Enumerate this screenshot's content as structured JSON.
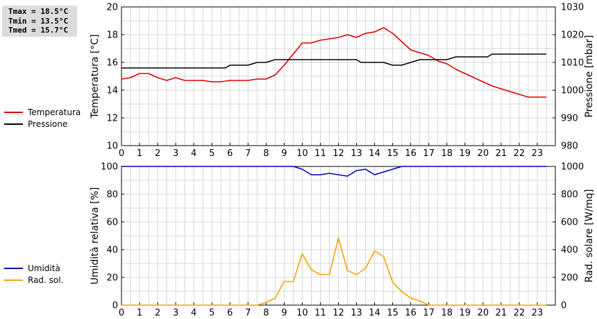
{
  "stats": {
    "tmax": "Tmax = 18.5°C",
    "tmin": "Tmin = 13.5°C",
    "tmed": "Tmed = 15.7°C"
  },
  "legend_top": [
    {
      "label": "Temperatura",
      "color": "#dd0000"
    },
    {
      "label": "Pressione",
      "color": "#000000"
    }
  ],
  "legend_bottom": [
    {
      "label": "Umidità",
      "color": "#0000bb"
    },
    {
      "label": "Rad. sol.",
      "color": "#f5a300"
    }
  ],
  "chart_data": [
    {
      "type": "line",
      "xlabel": "",
      "xlim": [
        0,
        24
      ],
      "xticks": [
        "0",
        "1",
        "2",
        "3",
        "4",
        "5",
        "6",
        "7",
        "8",
        "9",
        "10",
        "11",
        "12",
        "13",
        "14",
        "15",
        "16",
        "17",
        "18",
        "19",
        "20",
        "21",
        "22",
        "23"
      ],
      "ylabel": "Temperatura [°C]",
      "ylim": [
        10,
        20
      ],
      "yticks": [
        "10",
        "12",
        "14",
        "16",
        "18",
        "20"
      ],
      "y2label": "Pressione [mbar]",
      "y2lim": [
        980,
        1030
      ],
      "y2ticks": [
        "980",
        "990",
        "1000",
        "1010",
        "1020",
        "1030"
      ],
      "grid": true,
      "series": [
        {
          "name": "Temperatura",
          "axis": "left",
          "color": "#dd0000",
          "x": [
            0,
            0.5,
            1,
            1.5,
            2,
            2.5,
            3,
            3.5,
            4,
            4.5,
            5,
            5.5,
            6,
            6.5,
            7,
            7.5,
            8,
            8.5,
            9,
            9.5,
            10,
            10.5,
            11,
            11.5,
            12,
            12.5,
            13,
            13.5,
            14,
            14.5,
            15,
            15.5,
            16,
            16.5,
            17,
            17.5,
            18,
            18.5,
            19,
            19.5,
            20,
            20.5,
            21,
            21.5,
            22,
            22.5,
            23,
            23.5
          ],
          "y": [
            14.8,
            14.9,
            15.2,
            15.2,
            14.9,
            14.7,
            14.9,
            14.7,
            14.7,
            14.7,
            14.6,
            14.6,
            14.7,
            14.7,
            14.7,
            14.8,
            14.8,
            15.1,
            15.8,
            16.6,
            17.4,
            17.4,
            17.6,
            17.7,
            17.8,
            18.0,
            17.8,
            18.1,
            18.2,
            18.5,
            18.1,
            17.5,
            16.9,
            16.7,
            16.5,
            16.1,
            15.9,
            15.5,
            15.2,
            14.9,
            14.6,
            14.3,
            14.1,
            13.9,
            13.7,
            13.5,
            13.5,
            13.5
          ]
        },
        {
          "name": "Pressione",
          "axis": "right",
          "color": "#000000",
          "x": [
            0,
            5.75,
            6,
            6.5,
            7,
            7.25,
            7.5,
            8,
            8.25,
            8.5,
            9,
            12.75,
            13,
            13.25,
            14,
            14.5,
            15,
            15.5,
            16,
            16.25,
            16.5,
            17,
            17.25,
            18,
            18.25,
            18.5,
            19,
            20.25,
            20.5,
            21,
            23.5
          ],
          "y": [
            1008,
            1008,
            1009,
            1009,
            1009,
            1009.5,
            1010,
            1010,
            1010.5,
            1011,
            1011,
            1011,
            1011,
            1010,
            1010,
            1010,
            1009,
            1009,
            1010,
            1010.5,
            1011,
            1011,
            1011,
            1011,
            1011.5,
            1012,
            1012,
            1012,
            1013,
            1013,
            1013
          ]
        }
      ]
    },
    {
      "type": "line",
      "xlabel": "",
      "xlim": [
        0,
        24
      ],
      "xticks": [
        "0",
        "1",
        "2",
        "3",
        "4",
        "5",
        "6",
        "7",
        "8",
        "9",
        "10",
        "11",
        "12",
        "13",
        "14",
        "15",
        "16",
        "17",
        "18",
        "19",
        "20",
        "21",
        "22",
        "23"
      ],
      "ylabel": "Umidità relativa [%]",
      "ylim": [
        0,
        100
      ],
      "yticks": [
        "0",
        "20",
        "40",
        "60",
        "80",
        "100"
      ],
      "y2label": "Rad. solare [W/mq]",
      "y2lim": [
        0,
        1000
      ],
      "y2ticks": [
        "0",
        "200",
        "400",
        "600",
        "800",
        "1000"
      ],
      "grid": true,
      "series": [
        {
          "name": "Umidità",
          "axis": "left",
          "color": "#0000bb",
          "x": [
            0,
            9.5,
            10,
            10.5,
            11,
            11.5,
            12,
            12.5,
            13,
            13.5,
            14,
            14.5,
            15,
            15.5,
            16,
            23.5
          ],
          "y": [
            100,
            100,
            98,
            94,
            94,
            95,
            94,
            93,
            97,
            98,
            94,
            96,
            98,
            100,
            100,
            100
          ]
        },
        {
          "name": "Rad. sol.",
          "axis": "right",
          "color": "#f5a300",
          "x": [
            0,
            7.5,
            8,
            8.5,
            9,
            9.5,
            10,
            10.5,
            11,
            11.5,
            12,
            12.5,
            13,
            13.5,
            14,
            14.5,
            15,
            15.5,
            16,
            16.5,
            17,
            17.5,
            23.5
          ],
          "y": [
            0,
            0,
            20,
            50,
            170,
            170,
            370,
            255,
            220,
            220,
            485,
            250,
            220,
            265,
            390,
            350,
            165,
            100,
            50,
            30,
            0,
            0,
            0
          ]
        }
      ]
    }
  ]
}
